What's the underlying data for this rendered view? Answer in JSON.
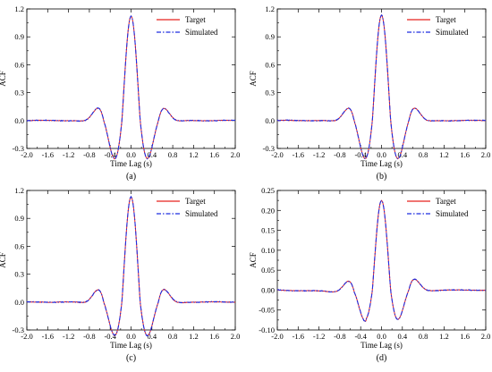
{
  "colors": {
    "target": "#e8231f",
    "simulated": "#1f2de0",
    "frame": "#000000"
  },
  "chart_data": [
    {
      "type": "line",
      "panel_label": "(a)",
      "xlabel": "Time Lag (s)",
      "ylabel": "ACF",
      "xlim": [
        -2.0,
        2.0
      ],
      "ylim": [
        -0.3,
        1.2
      ],
      "xticks": [
        "-2.0",
        "-1.6",
        "-1.2",
        "-0.8",
        "-0.4",
        "0.0",
        "0.4",
        "0.8",
        "1.2",
        "1.6",
        "2.0"
      ],
      "yticks": [
        "-0.3",
        "0.0",
        "0.3",
        "0.6",
        "0.9",
        "1.2"
      ],
      "legend_position": "top-right",
      "peak": 1.12,
      "minimum": -0.25,
      "series": [
        {
          "name": "Target",
          "style": "solid"
        },
        {
          "name": "Simulated",
          "style": "dash-dot"
        }
      ]
    },
    {
      "type": "line",
      "panel_label": "(b)",
      "xlabel": "Time Lag (s)",
      "ylabel": "ACF",
      "xlim": [
        -2.0,
        2.0
      ],
      "ylim": [
        -0.3,
        1.2
      ],
      "xticks": [
        "-2.0",
        "-1.6",
        "-1.2",
        "-0.8",
        "-0.4",
        "0.0",
        "0.4",
        "0.8",
        "1.2",
        "1.6",
        "2.0"
      ],
      "yticks": [
        "-0.3",
        "0.0",
        "0.3",
        "0.6",
        "0.9",
        "1.2"
      ],
      "legend_position": "top-right",
      "peak": 1.13,
      "minimum": -0.25,
      "series": [
        {
          "name": "Target",
          "style": "solid"
        },
        {
          "name": "Simulated",
          "style": "dash-dot"
        }
      ]
    },
    {
      "type": "line",
      "panel_label": "(c)",
      "xlabel": "Time Lag (s)",
      "ylabel": "ACF",
      "xlim": [
        -2.0,
        2.0
      ],
      "ylim": [
        -0.3,
        1.2
      ],
      "xticks": [
        "-2.0",
        "-1.6",
        "-1.2",
        "-0.8",
        "-0.4",
        "0.0",
        "0.4",
        "0.8",
        "1.2",
        "1.6",
        "2.0"
      ],
      "yticks": [
        "-0.3",
        "0.0",
        "0.3",
        "0.6",
        "0.9",
        "1.2"
      ],
      "legend_position": "top-right",
      "peak": 1.13,
      "minimum": -0.22,
      "series": [
        {
          "name": "Target",
          "style": "solid"
        },
        {
          "name": "Simulated",
          "style": "dash-dot"
        }
      ]
    },
    {
      "type": "line",
      "panel_label": "(d)",
      "xlabel": "Time Lag (s)",
      "ylabel": "ACF",
      "xlim": [
        -2.0,
        2.0
      ],
      "ylim": [
        -0.1,
        0.25
      ],
      "xticks": [
        "-2.0",
        "-1.6",
        "-1.2",
        "-0.8",
        "-0.4",
        "0.0",
        "0.4",
        "0.8",
        "1.2",
        "1.6",
        "2.0"
      ],
      "yticks": [
        "-0.10",
        "-0.05",
        "0.00",
        "0.05",
        "0.10",
        "0.15",
        "0.20",
        "0.25"
      ],
      "legend_position": "top-right",
      "peak": 0.225,
      "minimum": -0.045,
      "series": [
        {
          "name": "Target",
          "style": "solid"
        },
        {
          "name": "Simulated",
          "style": "dash-dot"
        }
      ]
    }
  ]
}
